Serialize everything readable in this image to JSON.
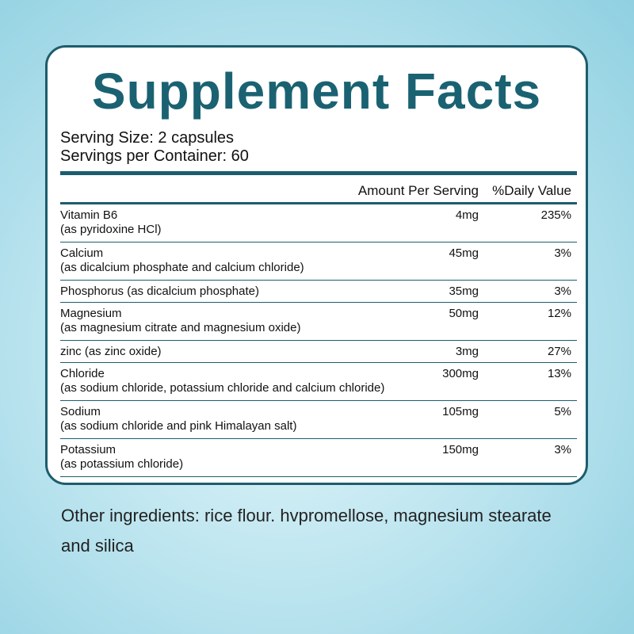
{
  "header": {
    "title": "Supplement Facts",
    "serving_size": "Serving Size: 2 capsules",
    "servings_per_container": "Servings per Container: 60"
  },
  "table": {
    "columns": [
      "Amount Per Serving",
      "%Daily Value"
    ],
    "rows": [
      {
        "name": "Vitamin B6",
        "note": "(as pyridoxine HCl)",
        "amount": "4mg",
        "daily_value": "235%"
      },
      {
        "name": "Calcium",
        "note": "(as dicalcium phosphate and calcium chloride)",
        "amount": "45mg",
        "daily_value": "3%"
      },
      {
        "name": "Phosphorus (as dicalcium phosphate)",
        "amount": "35mg",
        "daily_value": "3%"
      },
      {
        "name": "Magnesium",
        "note": "(as magnesium citrate and magnesium oxide)",
        "amount": "50mg",
        "daily_value": "12%"
      },
      {
        "name": "zinc (as zinc oxide)",
        "amount": "3mg",
        "daily_value": "27%"
      },
      {
        "name": "Chloride",
        "note": "(as sodium chloride, potassium chloride and calcium chloride)",
        "amount": "300mg",
        "daily_value": "13%"
      },
      {
        "name": "Sodium",
        "note": "(as sodium chloride and pink Himalayan salt)",
        "amount": "105mg",
        "daily_value": "5%"
      },
      {
        "name": "Potassium",
        "note": "(as potassium chloride)",
        "amount": "150mg",
        "daily_value": "3%"
      }
    ]
  },
  "footer": {
    "other_ingredients": "Other ingredients: rice flour. hvpromellose, magnesium stearate and silica"
  }
}
